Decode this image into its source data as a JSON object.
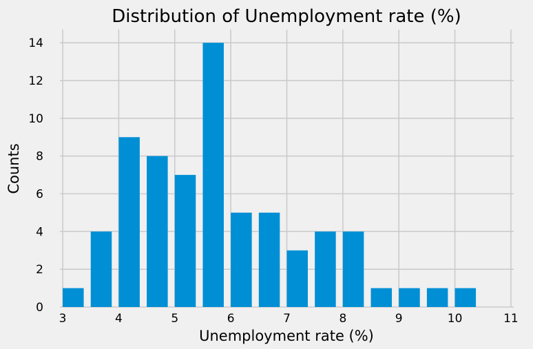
{
  "chart_data": {
    "type": "bar",
    "title": "Distribution of Unemployment rate (%)",
    "xlabel": "Unemployment rate (%)",
    "ylabel": "Counts",
    "bar_color": "#008fd5",
    "background": "#f0f0f0",
    "grid_color": "#cbcbcb",
    "grid": true,
    "xlim": [
      2.95,
      11.05
    ],
    "ylim": [
      0,
      14.7
    ],
    "xticks": [
      3,
      4,
      5,
      6,
      7,
      8,
      9,
      10,
      11
    ],
    "yticks": [
      0,
      2,
      4,
      6,
      8,
      10,
      12,
      14
    ],
    "bin_width": 0.5,
    "bar_width": 0.375,
    "bins": [
      {
        "start": 3.0,
        "count": 1
      },
      {
        "start": 3.5,
        "count": 4
      },
      {
        "start": 4.0,
        "count": 9
      },
      {
        "start": 4.5,
        "count": 8
      },
      {
        "start": 5.0,
        "count": 7
      },
      {
        "start": 5.5,
        "count": 14
      },
      {
        "start": 6.0,
        "count": 5
      },
      {
        "start": 6.5,
        "count": 5
      },
      {
        "start": 7.0,
        "count": 3
      },
      {
        "start": 7.5,
        "count": 4
      },
      {
        "start": 8.0,
        "count": 4
      },
      {
        "start": 8.5,
        "count": 1
      },
      {
        "start": 9.0,
        "count": 1
      },
      {
        "start": 9.5,
        "count": 1
      },
      {
        "start": 10.0,
        "count": 1
      },
      {
        "start": 10.5,
        "count": 0
      }
    ]
  }
}
